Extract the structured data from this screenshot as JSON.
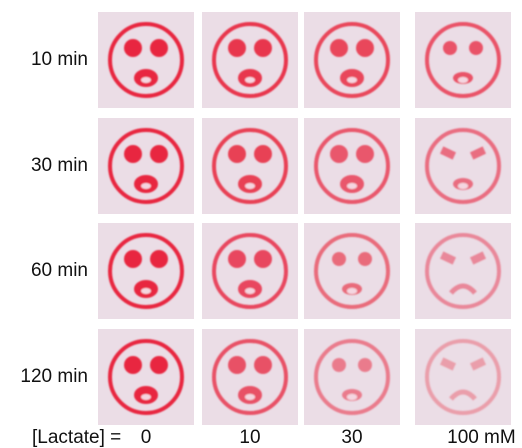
{
  "rows": [
    "10 min",
    "30 min",
    "60 min",
    "120 min"
  ],
  "columns": [
    "0",
    "10",
    "30",
    "100"
  ],
  "axis_label": "[Lactate] =",
  "unit": "mM"
}
